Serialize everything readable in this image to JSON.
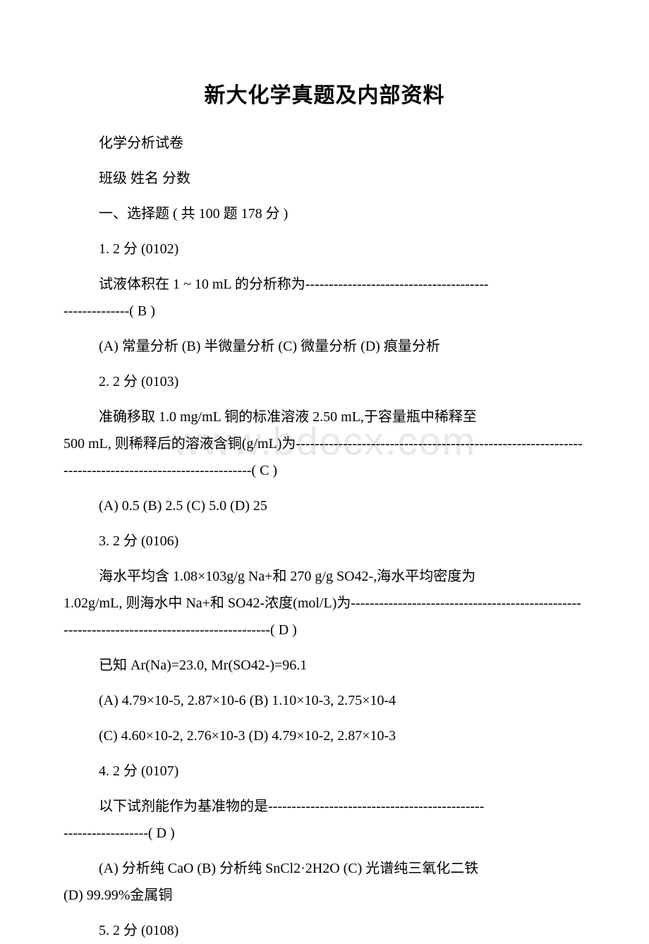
{
  "title": "新大化学真题及内部资料",
  "header": {
    "subtitle": "化学分析试卷",
    "info_line": "班级  姓名  分数",
    "section_heading": "一、选择题 ( 共 100 题 178 分 )"
  },
  "watermark": "www.bdocx.com",
  "questions": [
    {
      "number_line": "1. 2 分 (0102)",
      "stem_first": "试液体积在 1 ~ 10 mL 的分析称为---------------------------------------",
      "stem_cont": "--------------( B )",
      "options": "(A) 常量分析 (B) 半微量分析 (C) 微量分析 (D) 痕量分析"
    },
    {
      "number_line": "2. 2 分 (0103)",
      "stem_first": "准确移取 1.0 mg/mL 铜的标准溶液 2.50 mL,于容量瓶中稀释至",
      "stem_cont": "500 mL, 则稀释后的溶液含铜(g/mL)为-----------------------------------------------------------------------------------------------------( C )",
      "options": "(A) 0.5 (B) 2.5 (C) 5.0 (D) 25"
    },
    {
      "number_line": "3. 2 分 (0106)",
      "stem_first": "海水平均含 1.08×103g/g Na+和 270 g/g SO42-,海水平均密度为",
      "stem_cont": "1.02g/mL, 则海水中 Na+和 SO42-浓度(mol/L)为---------------------------------------------------------------------------------------------( D )",
      "extra_1": "已知 Ar(Na)=23.0, Mr(SO42-)=96.1",
      "options_1": "(A) 4.79×10-5, 2.87×10-6 (B) 1.10×10-3, 2.75×10-4",
      "options_2": "(C) 4.60×10-2, 2.76×10-3 (D) 4.79×10-2, 2.87×10-3"
    },
    {
      "number_line": "4. 2 分 (0107)",
      "stem_first": "以下试剂能作为基准物的是----------------------------------------------",
      "stem_cont": "------------------( D )",
      "options_first": "(A) 分析纯 CaO (B) 分析纯 SnCl2·2H2O (C) 光谱纯三氧化二铁",
      "options_cont": "(D) 99.99%金属铜"
    },
    {
      "number_line": "5. 2 分 (0108)"
    }
  ],
  "colors": {
    "text": "#000000",
    "background": "#ffffff",
    "watermark": "#e8e8e8"
  },
  "typography": {
    "title_fontsize": 30,
    "body_fontsize": 20,
    "watermark_fontsize": 56,
    "font_family": "SimSun"
  }
}
